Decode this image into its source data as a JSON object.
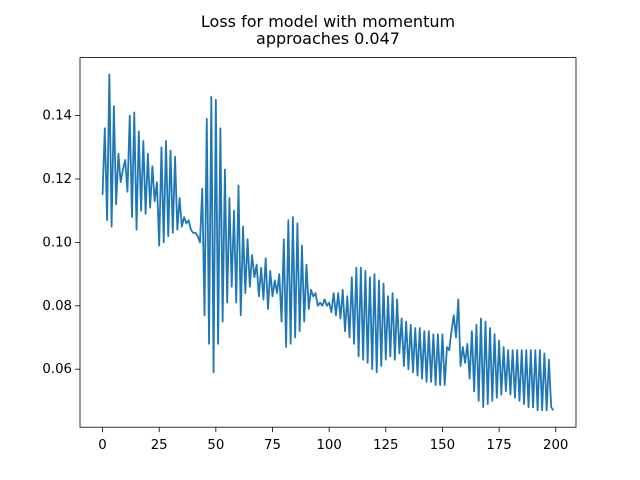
{
  "chart_data": {
    "type": "line",
    "title": [
      "Loss for model with momentum",
      "approaches 0.047"
    ],
    "x": [
      0,
      1,
      2,
      3,
      4,
      5,
      6,
      7,
      8,
      9,
      10,
      11,
      12,
      13,
      14,
      15,
      16,
      17,
      18,
      19,
      20,
      21,
      22,
      23,
      24,
      25,
      26,
      27,
      28,
      29,
      30,
      31,
      32,
      33,
      34,
      35,
      36,
      37,
      38,
      39,
      40,
      41,
      42,
      43,
      44,
      45,
      46,
      47,
      48,
      49,
      50,
      51,
      52,
      53,
      54,
      55,
      56,
      57,
      58,
      59,
      60,
      61,
      62,
      63,
      64,
      65,
      66,
      67,
      68,
      69,
      70,
      71,
      72,
      73,
      74,
      75,
      76,
      77,
      78,
      79,
      80,
      81,
      82,
      83,
      84,
      85,
      86,
      87,
      88,
      89,
      90,
      91,
      92,
      93,
      94,
      95,
      96,
      97,
      98,
      99,
      100,
      101,
      102,
      103,
      104,
      105,
      106,
      107,
      108,
      109,
      110,
      111,
      112,
      113,
      114,
      115,
      116,
      117,
      118,
      119,
      120,
      121,
      122,
      123,
      124,
      125,
      126,
      127,
      128,
      129,
      130,
      131,
      132,
      133,
      134,
      135,
      136,
      137,
      138,
      139,
      140,
      141,
      142,
      143,
      144,
      145,
      146,
      147,
      148,
      149,
      150,
      151,
      152,
      153,
      154,
      155,
      156,
      157,
      158,
      159,
      160,
      161,
      162,
      163,
      164,
      165,
      166,
      167,
      168,
      169,
      170,
      171,
      172,
      173,
      174,
      175,
      176,
      177,
      178,
      179,
      180,
      181,
      182,
      183,
      184,
      185,
      186,
      187,
      188,
      189,
      190,
      191,
      192,
      193,
      194,
      195,
      196,
      197,
      198,
      199
    ],
    "series": [
      {
        "color": "#1f77b4",
        "values": [
          0.115,
          0.136,
          0.107,
          0.153,
          0.105,
          0.143,
          0.112,
          0.128,
          0.119,
          0.123,
          0.126,
          0.116,
          0.14,
          0.108,
          0.141,
          0.104,
          0.135,
          0.11,
          0.132,
          0.109,
          0.128,
          0.111,
          0.124,
          0.113,
          0.119,
          0.099,
          0.13,
          0.1,
          0.132,
          0.102,
          0.129,
          0.103,
          0.127,
          0.104,
          0.114,
          0.105,
          0.108,
          0.106,
          0.107,
          0.104,
          0.103,
          0.103,
          0.102,
          0.1,
          0.117,
          0.077,
          0.139,
          0.068,
          0.146,
          0.059,
          0.145,
          0.068,
          0.136,
          0.075,
          0.123,
          0.081,
          0.114,
          0.086,
          0.11,
          0.081,
          0.118,
          0.077,
          0.105,
          0.084,
          0.101,
          0.086,
          0.096,
          0.089,
          0.093,
          0.083,
          0.092,
          0.082,
          0.095,
          0.079,
          0.091,
          0.083,
          0.088,
          0.084,
          0.09,
          0.075,
          0.101,
          0.067,
          0.107,
          0.068,
          0.108,
          0.07,
          0.106,
          0.072,
          0.099,
          0.075,
          0.093,
          0.079,
          0.085,
          0.083,
          0.084,
          0.08,
          0.081,
          0.08,
          0.082,
          0.08,
          0.081,
          0.078,
          0.084,
          0.077,
          0.084,
          0.076,
          0.085,
          0.072,
          0.083,
          0.07,
          0.089,
          0.068,
          0.092,
          0.064,
          0.092,
          0.063,
          0.091,
          0.062,
          0.089,
          0.06,
          0.09,
          0.059,
          0.088,
          0.061,
          0.087,
          0.063,
          0.083,
          0.064,
          0.084,
          0.063,
          0.082,
          0.065,
          0.076,
          0.061,
          0.075,
          0.06,
          0.074,
          0.059,
          0.073,
          0.058,
          0.073,
          0.057,
          0.072,
          0.056,
          0.072,
          0.056,
          0.071,
          0.055,
          0.071,
          0.055,
          0.071,
          0.055,
          0.067,
          0.066,
          0.072,
          0.077,
          0.07,
          0.082,
          0.061,
          0.067,
          0.062,
          0.068,
          0.057,
          0.072,
          0.053,
          0.074,
          0.05,
          0.076,
          0.048,
          0.075,
          0.049,
          0.073,
          0.05,
          0.071,
          0.051,
          0.069,
          0.052,
          0.067,
          0.053,
          0.066,
          0.052,
          0.066,
          0.051,
          0.066,
          0.05,
          0.066,
          0.049,
          0.066,
          0.048,
          0.066,
          0.048,
          0.066,
          0.047,
          0.066,
          0.047,
          0.065,
          0.047,
          0.063,
          0.048,
          0.047
        ]
      }
    ],
    "xlim": [
      -9.95,
      208.95
    ],
    "ylim": [
      0.0417,
      0.1583
    ],
    "xticks": [
      0,
      25,
      50,
      75,
      100,
      125,
      150,
      175,
      200
    ],
    "yticks": [
      0.06,
      0.08,
      {
        "value": 0.1,
        "label": "0.10"
      },
      0.12,
      0.14
    ]
  }
}
